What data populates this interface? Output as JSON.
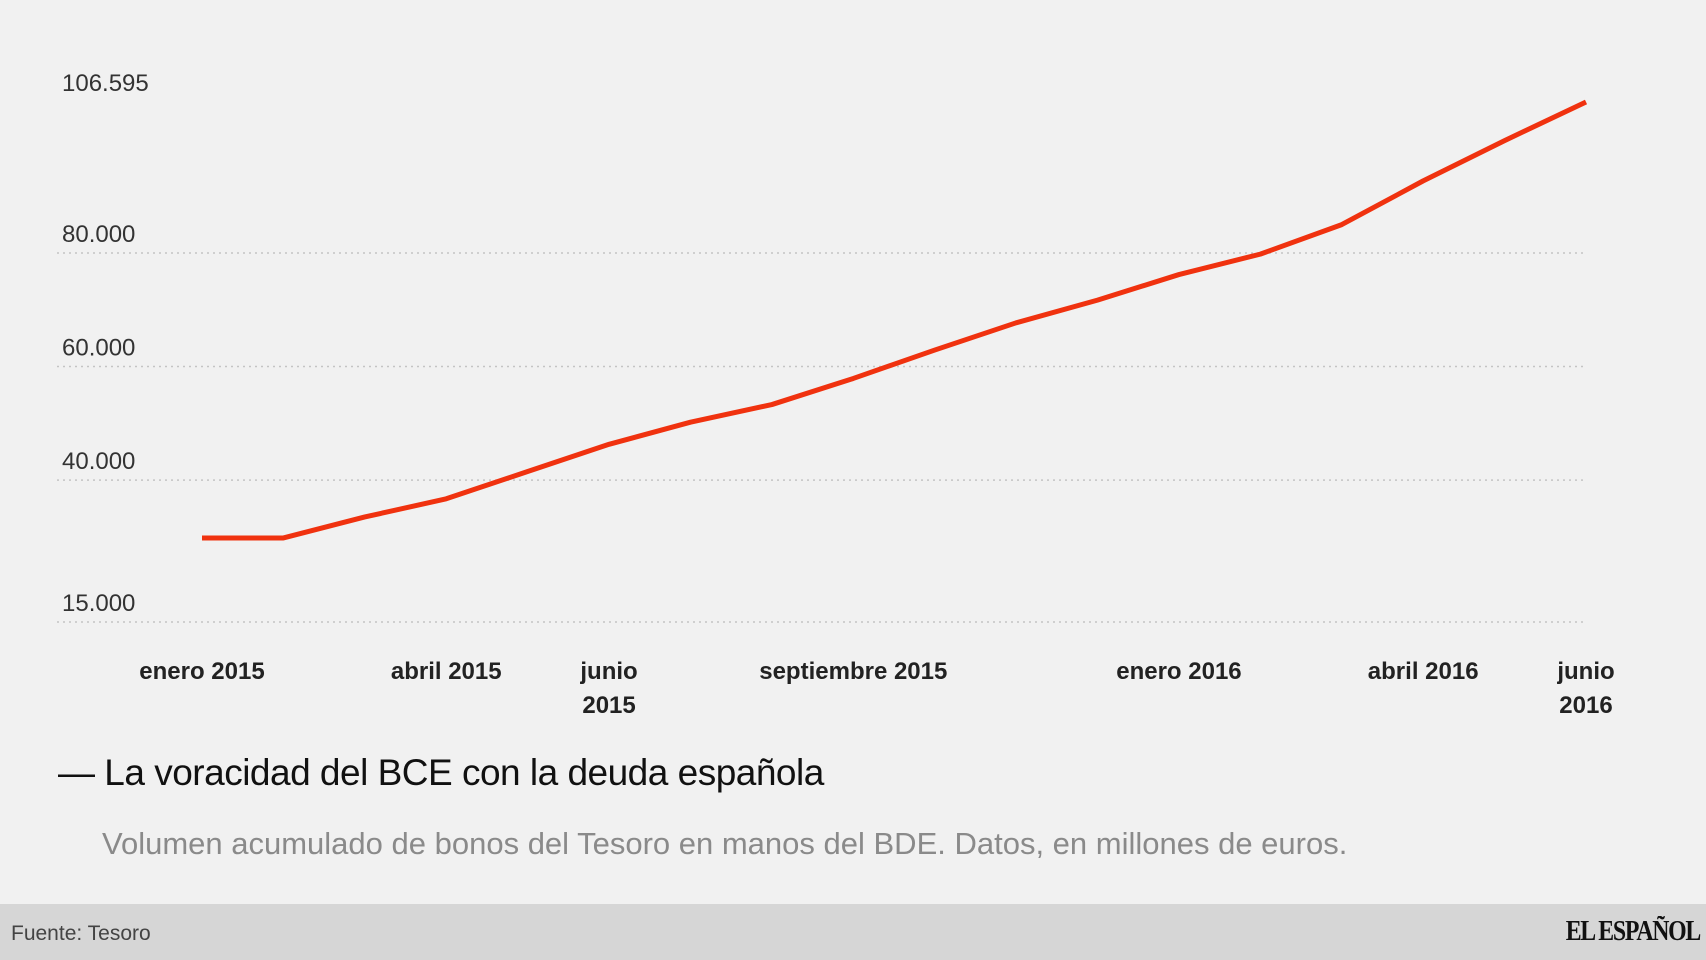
{
  "chart_data": {
    "type": "line",
    "title": "La voracidad del BCE con la deuda española",
    "subtitle": "Volumen acumulado de bonos del Tesoro en manos del BDE. Datos, en millones de euros.",
    "x": [
      "2015-01",
      "2015-02",
      "2015-03",
      "2015-04",
      "2015-05",
      "2015-06",
      "2015-07",
      "2015-08",
      "2015-09",
      "2015-10",
      "2015-11",
      "2015-12",
      "2016-01",
      "2016-02",
      "2016-03",
      "2016-04",
      "2016-05",
      "2016-06"
    ],
    "x_tick_labels": [
      {
        "at": "2015-01",
        "lines": [
          "enero 2015"
        ]
      },
      {
        "at": "2015-04",
        "lines": [
          "abril 2015"
        ]
      },
      {
        "at": "2015-06",
        "lines": [
          "junio",
          "2015"
        ]
      },
      {
        "at": "2015-09",
        "lines": [
          "septiembre 2015"
        ]
      },
      {
        "at": "2016-01",
        "lines": [
          "enero 2016"
        ]
      },
      {
        "at": "2016-04",
        "lines": [
          "abril 2016"
        ]
      },
      {
        "at": "2016-06",
        "lines": [
          "junio",
          "2016"
        ]
      }
    ],
    "series": [
      {
        "values": [
          29800,
          29800,
          33500,
          36700,
          41500,
          46300,
          50200,
          53300,
          57900,
          62900,
          67700,
          71700,
          76200,
          79800,
          85000,
          92700,
          99800,
          106595
        ],
        "color": "#f0320f"
      }
    ],
    "y_ticks": [
      {
        "value": 15000,
        "label": "15.000",
        "grid": true
      },
      {
        "value": 40000,
        "label": "40.000",
        "grid": true
      },
      {
        "value": 60000,
        "label": "60.000",
        "grid": true
      },
      {
        "value": 80000,
        "label": "80.000",
        "grid": true
      },
      {
        "value": 106595,
        "label": "106.595",
        "grid": false
      }
    ],
    "ylim": [
      15000,
      106595
    ],
    "grid": "dotted horizontal",
    "xlabel": "",
    "ylabel": ""
  },
  "title_prefix": "—",
  "footer": {
    "source": "Fuente: Tesoro",
    "logo": "EL ESPAÑOL"
  }
}
